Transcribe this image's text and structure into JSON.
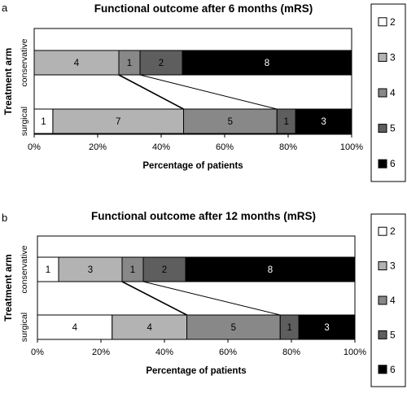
{
  "chart_data": [
    {
      "panel_label": "a",
      "type": "stacked-bar-horizontal-100pct",
      "title": "Functional outcome after 6 months (mRS)",
      "xlabel": "Percentage of patients",
      "ylabel": "Treatment arm",
      "xlim": [
        0,
        100
      ],
      "xticks": [
        "0%",
        "20%",
        "40%",
        "60%",
        "80%",
        "100%"
      ],
      "categories": [
        "conservative",
        "surgical"
      ],
      "series": [
        {
          "name": "2",
          "color": "#ffffff",
          "values": [
            0,
            1
          ]
        },
        {
          "name": "3",
          "color": "#b3b3b3",
          "values": [
            4,
            7
          ]
        },
        {
          "name": "4",
          "color": "#888888",
          "values": [
            1,
            5
          ]
        },
        {
          "name": "5",
          "color": "#5e5e5e",
          "values": [
            2,
            1
          ]
        },
        {
          "name": "6",
          "color": "#000000",
          "values": [
            8,
            3
          ]
        }
      ],
      "legend": {
        "position": "right",
        "items": [
          "2",
          "3",
          "4",
          "5",
          "6"
        ]
      }
    },
    {
      "panel_label": "b",
      "type": "stacked-bar-horizontal-100pct",
      "title": "Functional outcome after 12 months (mRS)",
      "xlabel": "Percentage of patients",
      "ylabel": "Treatment arm",
      "xlim": [
        0,
        100
      ],
      "xticks": [
        "0%",
        "20%",
        "40%",
        "60%",
        "80%",
        "100%"
      ],
      "categories": [
        "conservative",
        "surgical"
      ],
      "series": [
        {
          "name": "2",
          "color": "#ffffff",
          "values": [
            1,
            4
          ]
        },
        {
          "name": "3",
          "color": "#b3b3b3",
          "values": [
            3,
            4
          ]
        },
        {
          "name": "4",
          "color": "#888888",
          "values": [
            1,
            5
          ]
        },
        {
          "name": "5",
          "color": "#5e5e5e",
          "values": [
            2,
            1
          ]
        },
        {
          "name": "6",
          "color": "#000000",
          "values": [
            8,
            3
          ]
        }
      ],
      "legend": {
        "position": "right",
        "items": [
          "2",
          "3",
          "4",
          "5",
          "6"
        ]
      }
    }
  ]
}
